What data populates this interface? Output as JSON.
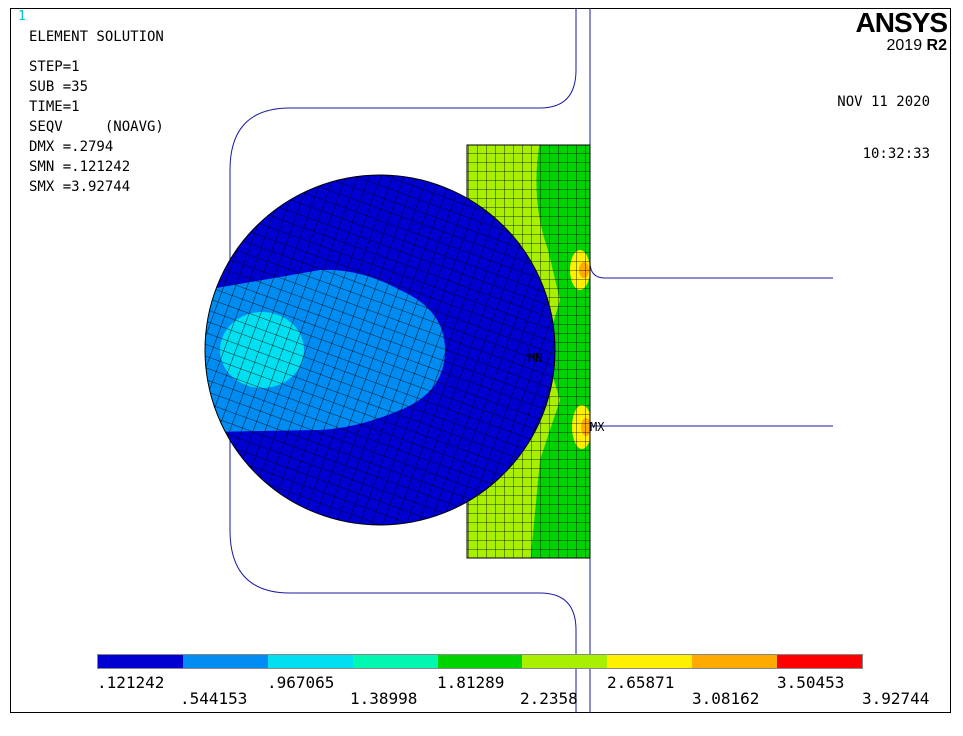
{
  "window": {
    "number": "1"
  },
  "logo": {
    "name": "ANSYS",
    "version": "2019",
    "release": "R2"
  },
  "stamp": {
    "date": "NOV 11 2020",
    "time": "10:32:33"
  },
  "info": {
    "title": "ELEMENT SOLUTION",
    "lines": [
      "STEP=1",
      "SUB =35",
      "TIME=1",
      "SEQV     (NOAVG)",
      "DMX =.2794",
      "SMN =.121242",
      "SMX =3.92744"
    ]
  },
  "markers": {
    "min": "MN",
    "max": "MX"
  },
  "legend": {
    "colors": [
      "#0000d0",
      "#008cf0",
      "#00e0f0",
      "#00f8b0",
      "#00d400",
      "#a8f000",
      "#fff000",
      "#ffaa00",
      "#ff0000"
    ],
    "top_labels": [
      ".121242",
      ".967065",
      "1.81289",
      "2.65871",
      "3.50453"
    ],
    "bottom_labels": [
      ".544153",
      "1.38998",
      "2.2358",
      "3.08162",
      "3.92744"
    ]
  },
  "chart_data": {
    "type": "heatmap",
    "title": "ELEMENT SOLUTION",
    "quantity": "SEQV",
    "min": 0.121242,
    "max": 3.92744,
    "contour_levels": [
      0.121242,
      0.544153,
      0.967065,
      1.38998,
      1.81289,
      2.2358,
      2.65871,
      3.08162,
      3.50453,
      3.92744
    ],
    "colors": [
      "#0000d0",
      "#008cf0",
      "#00e0f0",
      "#00f8b0",
      "#00d400",
      "#a8f000",
      "#fff000",
      "#ffaa00",
      "#ff0000"
    ]
  }
}
